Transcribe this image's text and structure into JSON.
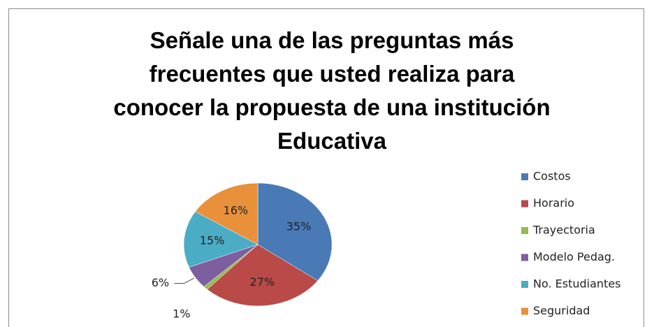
{
  "chart_data": {
    "type": "pie",
    "title": "Señale una de las preguntas más frecuentes que usted realiza para conocer la propuesta de una institución Educativa",
    "categories": [
      "Costos",
      "Horario",
      "Trayectoria",
      "Modelo Pedag.",
      "No. Estudiantes",
      "Seguridad"
    ],
    "values": [
      35,
      27,
      1,
      6,
      15,
      16
    ],
    "value_labels": [
      "35%",
      "27%",
      "1%",
      "6%",
      "15%",
      "16%"
    ],
    "colors": [
      "#4a7ab5",
      "#b94a48",
      "#98b954",
      "#7d5fa0",
      "#4aacc5",
      "#e8903a"
    ],
    "legend": "right"
  }
}
